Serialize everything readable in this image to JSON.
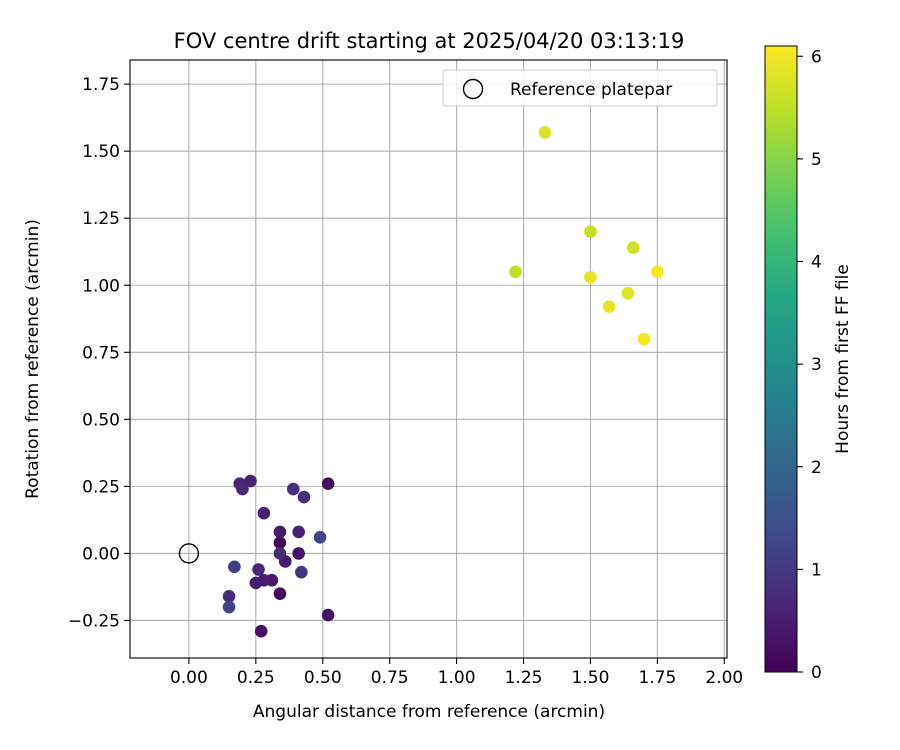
{
  "chart_data": {
    "type": "scatter",
    "title": "FOV centre drift starting at 2025/04/20 03:13:19",
    "xlabel": "Angular distance from reference (arcmin)",
    "ylabel": "Rotation from reference (arcmin)",
    "xlim": [
      -0.22,
      2.01
    ],
    "ylim": [
      -0.39,
      1.84
    ],
    "xticks": [
      0.0,
      0.25,
      0.5,
      0.75,
      1.0,
      1.25,
      1.5,
      1.75,
      2.0
    ],
    "xtick_labels": [
      "0.00",
      "0.25",
      "0.50",
      "0.75",
      "1.00",
      "1.25",
      "1.50",
      "1.75",
      "2.00"
    ],
    "yticks": [
      -0.25,
      0.0,
      0.25,
      0.5,
      0.75,
      1.0,
      1.25,
      1.5,
      1.75
    ],
    "ytick_labels": [
      "−0.25",
      "0.00",
      "0.25",
      "0.50",
      "0.75",
      "1.00",
      "1.25",
      "1.50",
      "1.75"
    ],
    "grid": true,
    "legend": {
      "placement": "top-right",
      "entries": [
        "Reference platepar"
      ]
    },
    "reference_point": {
      "x": 0.0,
      "y": 0.0
    },
    "colorbar": {
      "label": "Hours from first FF file",
      "range": [
        0,
        6.1
      ],
      "ticks": [
        0,
        1,
        2,
        3,
        4,
        5,
        6
      ],
      "tick_labels": [
        "0",
        "1",
        "2",
        "3",
        "4",
        "5",
        "6"
      ],
      "colormap": "viridis"
    },
    "points": [
      {
        "x": 0.34,
        "y": 0.04,
        "hours": 0.05
      },
      {
        "x": 0.34,
        "y": -0.15,
        "hours": 0.1
      },
      {
        "x": 0.52,
        "y": 0.26,
        "hours": 0.2
      },
      {
        "x": 0.27,
        "y": -0.29,
        "hours": 0.25
      },
      {
        "x": 0.52,
        "y": -0.23,
        "hours": 0.3
      },
      {
        "x": 0.41,
        "y": 0.0,
        "hours": 0.35
      },
      {
        "x": 0.31,
        "y": -0.1,
        "hours": 0.4
      },
      {
        "x": 0.34,
        "y": 0.08,
        "hours": 0.45
      },
      {
        "x": 0.36,
        "y": -0.03,
        "hours": 0.45
      },
      {
        "x": 0.25,
        "y": -0.11,
        "hours": 0.5
      },
      {
        "x": 0.28,
        "y": -0.1,
        "hours": 0.5
      },
      {
        "x": 0.28,
        "y": 0.15,
        "hours": 0.55
      },
      {
        "x": 0.41,
        "y": 0.08,
        "hours": 0.6
      },
      {
        "x": 0.23,
        "y": 0.27,
        "hours": 0.6
      },
      {
        "x": 0.19,
        "y": 0.26,
        "hours": 0.65
      },
      {
        "x": 0.2,
        "y": 0.24,
        "hours": 0.7
      },
      {
        "x": 0.26,
        "y": -0.06,
        "hours": 0.7
      },
      {
        "x": 0.15,
        "y": -0.16,
        "hours": 0.75
      },
      {
        "x": 0.34,
        "y": 0.0,
        "hours": 0.75
      },
      {
        "x": 0.43,
        "y": 0.21,
        "hours": 0.8
      },
      {
        "x": 0.39,
        "y": 0.24,
        "hours": 0.85
      },
      {
        "x": 0.42,
        "y": -0.07,
        "hours": 0.95
      },
      {
        "x": 0.17,
        "y": -0.05,
        "hours": 1.1
      },
      {
        "x": 0.15,
        "y": -0.2,
        "hours": 1.2
      },
      {
        "x": 0.49,
        "y": 0.06,
        "hours": 1.25
      },
      {
        "x": 1.22,
        "y": 1.05,
        "hours": 5.5
      },
      {
        "x": 1.5,
        "y": 1.2,
        "hours": 5.6
      },
      {
        "x": 1.66,
        "y": 1.14,
        "hours": 5.65
      },
      {
        "x": 1.33,
        "y": 1.57,
        "hours": 5.75
      },
      {
        "x": 1.64,
        "y": 0.97,
        "hours": 5.8
      },
      {
        "x": 1.5,
        "y": 1.03,
        "hours": 5.85
      },
      {
        "x": 1.57,
        "y": 0.92,
        "hours": 5.9
      },
      {
        "x": 1.7,
        "y": 0.8,
        "hours": 6.0
      },
      {
        "x": 1.75,
        "y": 1.05,
        "hours": 6.05
      }
    ]
  }
}
